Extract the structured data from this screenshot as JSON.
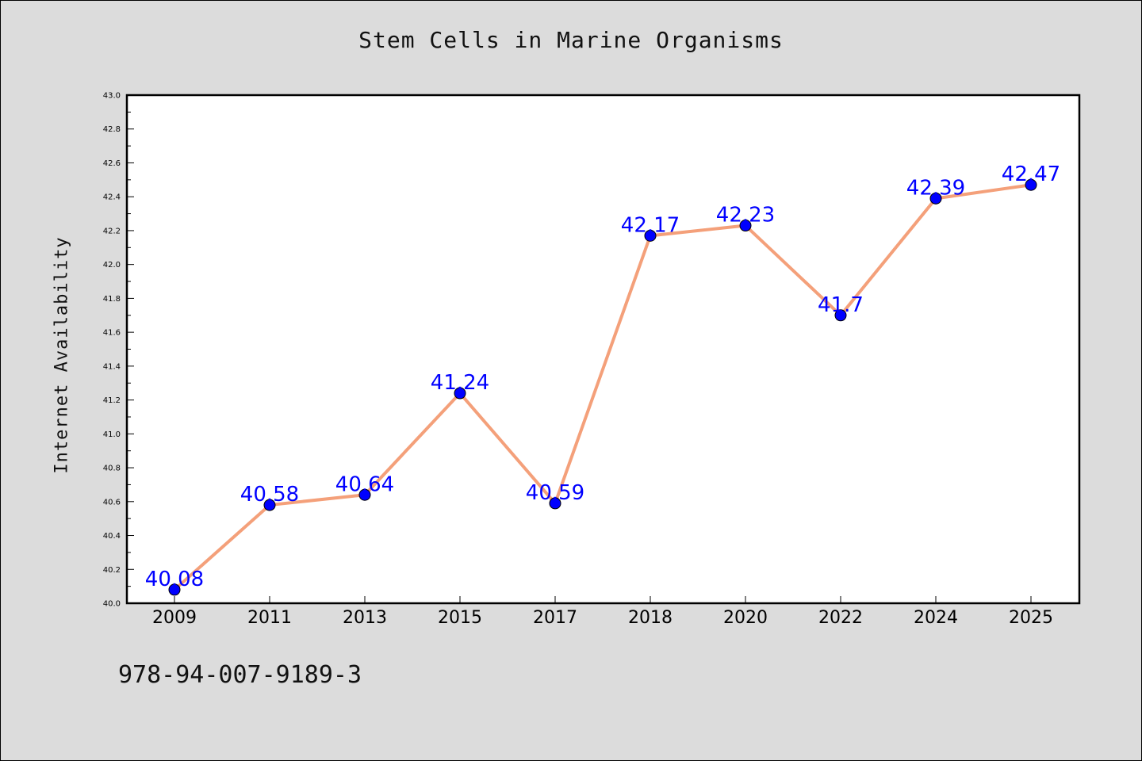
{
  "chart_data": {
    "type": "line",
    "title": "Stem Cells in Marine Organisms",
    "xlabel": "",
    "ylabel": "Internet Availability",
    "categories": [
      "2009",
      "2011",
      "2013",
      "2015",
      "2017",
      "2018",
      "2020",
      "2022",
      "2024",
      "2025"
    ],
    "series": [
      {
        "values": [
          40.08,
          40.58,
          40.64,
          41.24,
          40.59,
          42.17,
          42.23,
          41.7,
          42.39,
          42.47
        ],
        "data_labels": [
          "40.08",
          "40.58",
          "40.64",
          "41.24",
          "40.59",
          "42.17",
          "42.23",
          "41.7",
          "42.39",
          "42.47"
        ],
        "line_color": "#f4a07a",
        "marker_color": "#0000ff"
      }
    ],
    "ylim": [
      40.0,
      43.0
    ],
    "y_ticks": [
      "40.0",
      "40.2",
      "40.4",
      "40.6",
      "40.8",
      "41.0",
      "41.2",
      "41.4",
      "41.6",
      "41.8",
      "42.0",
      "42.2",
      "42.4",
      "42.6",
      "42.8",
      "43.0"
    ],
    "grid": false,
    "legend": "none",
    "data_label_color": "#0000ff"
  },
  "footer": {
    "isbn": "978-94-007-9189-3"
  }
}
